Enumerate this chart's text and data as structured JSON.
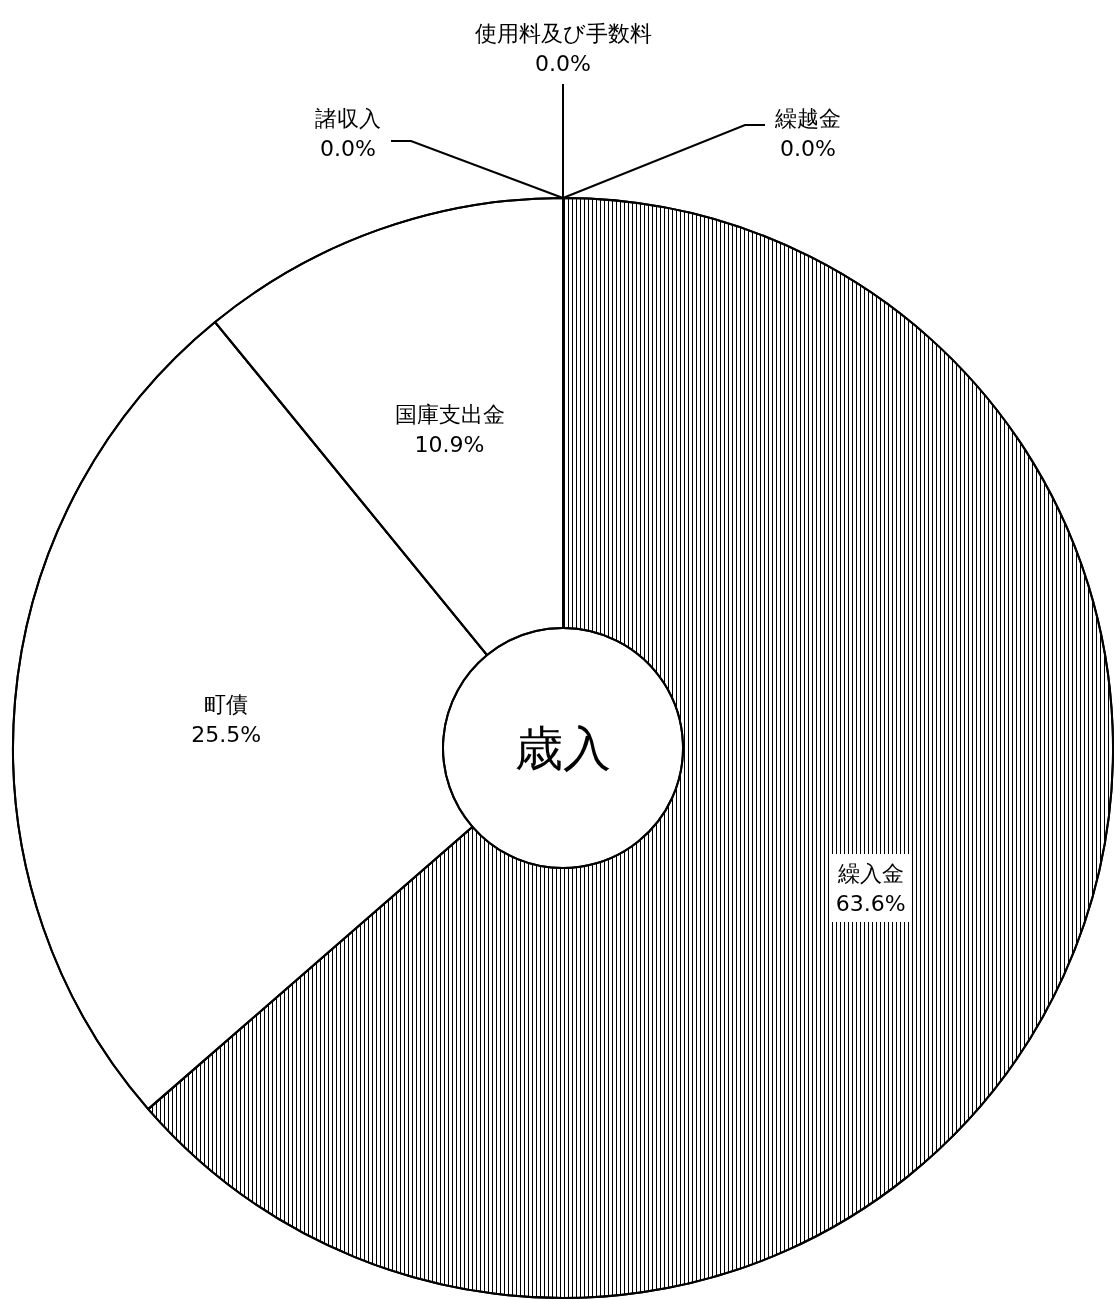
{
  "chart_data": {
    "type": "donut",
    "title": "歳入",
    "categories": [
      "繰入金",
      "町債",
      "国庫支出金",
      "諸収入",
      "使用料及び手数料",
      "繰越金"
    ],
    "values": [
      63.6,
      25.5,
      10.9,
      0.0,
      0.0,
      0.0
    ],
    "value_labels": [
      "63.6%",
      "25.5%",
      "10.9%",
      "0.0%",
      "0.0%",
      "0.0%"
    ],
    "colors": [
      "#ffffff",
      "#ffffff",
      "#ffffff",
      "#ffffff",
      "#ffffff",
      "#ffffff"
    ],
    "legend": false
  }
}
